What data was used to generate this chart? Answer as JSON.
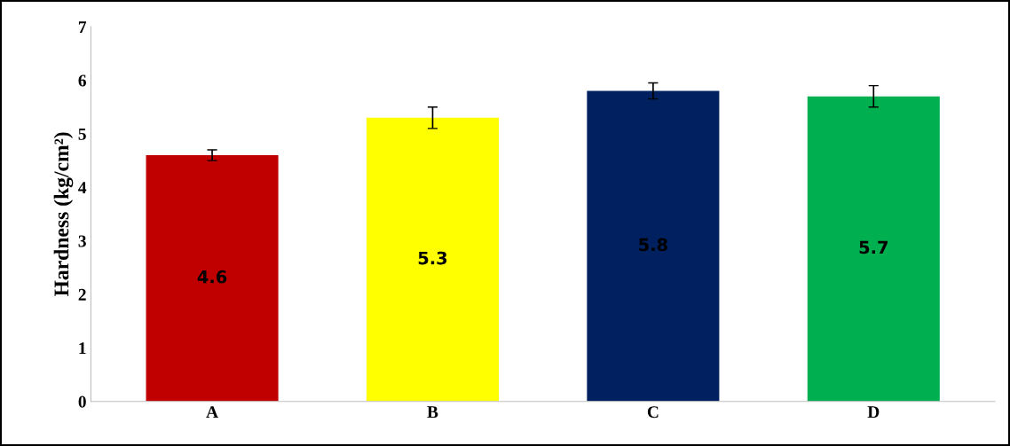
{
  "chart_data": {
    "type": "bar",
    "ylabel": "Hardness (kg/cm²)",
    "categories": [
      "A",
      "B",
      "C",
      "D"
    ],
    "values": [
      4.6,
      5.3,
      5.8,
      5.7
    ],
    "colors": [
      "#c00000",
      "#ffff00",
      "#002060",
      "#00b050"
    ],
    "errors": [
      0.1,
      0.2,
      0.15,
      0.2
    ],
    "ylim": [
      0,
      7
    ],
    "yticks": [
      0,
      1,
      2,
      3,
      4,
      5,
      6,
      7
    ],
    "data_labels": true,
    "grid": false,
    "legend": false
  }
}
